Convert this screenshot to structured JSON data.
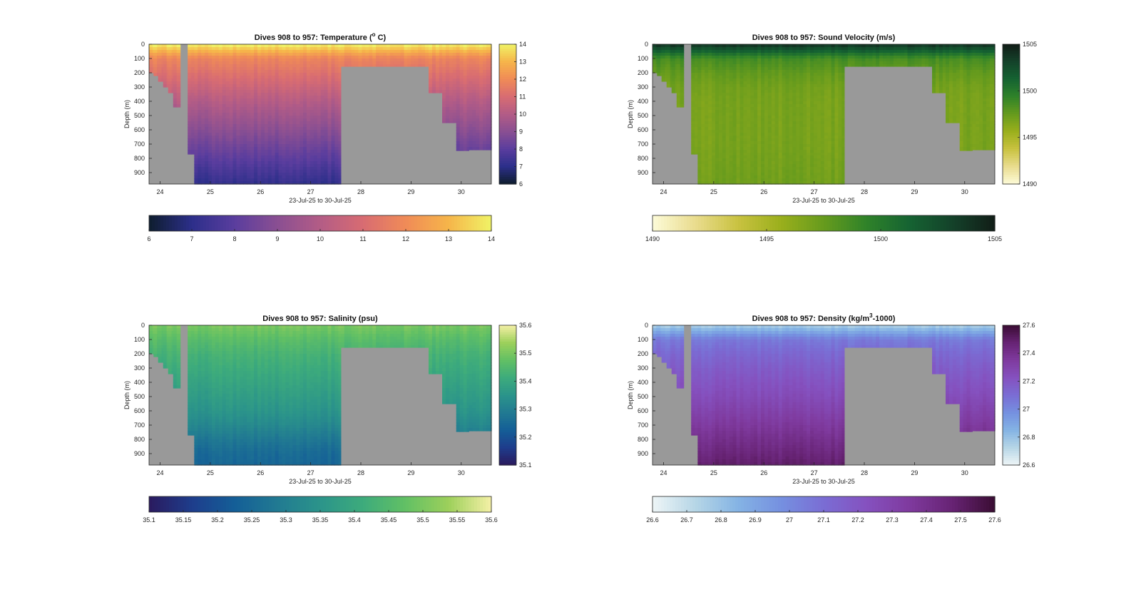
{
  "chart_data": [
    {
      "type": "heatmap",
      "title": "Dives 908 to 957: Temperature (° C)",
      "title_base": "Dives 908 to 957: Temperature (",
      "title_sup": "o",
      "title_end": " C)",
      "xlabel": "23-Jul-25 to 30-Jul-25",
      "ylabel": "Depth (m)",
      "x_ticks": [
        "24",
        "25",
        "26",
        "27",
        "28",
        "29",
        "30"
      ],
      "y_ticks": [
        "0",
        "100",
        "200",
        "300",
        "400",
        "500",
        "600",
        "700",
        "800",
        "900"
      ],
      "xlim": [
        23.78,
        30.6
      ],
      "ylim": [
        0,
        980
      ],
      "colorbar_ticks": [
        "6",
        "7",
        "8",
        "9",
        "10",
        "11",
        "12",
        "13",
        "14"
      ],
      "colorbar_h_ticks": [
        "6",
        "7",
        "8",
        "9",
        "10",
        "11",
        "12",
        "13",
        "14"
      ],
      "clim": [
        6,
        14
      ],
      "colormap": [
        "#0e1d2e",
        "#2c2f8a",
        "#5a3d9e",
        "#8a4f92",
        "#b35c86",
        "#d86c72",
        "#f08b57",
        "#f6b54a",
        "#f0f366"
      ],
      "nodata_color": "#999999",
      "values_by_depth": [
        14,
        11.8,
        11.2,
        10.6,
        10.0,
        9.5,
        9.0,
        8.5,
        8.0,
        7.5,
        7.0
      ]
    },
    {
      "type": "heatmap",
      "title": "Dives 908 to 957: Sound Velocity (m/s)",
      "title_base": "Dives 908 to 957: Sound Velocity (m/s)",
      "title_sup": "",
      "title_end": "",
      "xlabel": "23-Jul-25 to 30-Jul-25",
      "ylabel": "Depth (m)",
      "x_ticks": [
        "24",
        "25",
        "26",
        "27",
        "28",
        "29",
        "30"
      ],
      "y_ticks": [
        "0",
        "100",
        "200",
        "300",
        "400",
        "500",
        "600",
        "700",
        "800",
        "900"
      ],
      "xlim": [
        23.78,
        30.6
      ],
      "ylim": [
        0,
        980
      ],
      "colorbar_ticks": [
        "1490",
        "1495",
        "1500",
        "1505"
      ],
      "colorbar_h_ticks": [
        "1490",
        "1495",
        "1500",
        "1505"
      ],
      "clim": [
        1490,
        1505
      ],
      "colormap": [
        "#fdfbd8",
        "#e9dc8e",
        "#c9c240",
        "#9aaf1c",
        "#669b1d",
        "#2f8229",
        "#156332",
        "#14422a",
        "#111d17"
      ],
      "nodata_color": "#999999",
      "values_by_depth": [
        1504,
        1498.6,
        1497.6,
        1497.0,
        1496.8,
        1496.8,
        1496.8,
        1496.8,
        1496.9,
        1497.0,
        1497.1
      ]
    },
    {
      "type": "heatmap",
      "title": "Dives 908 to 957: Salinity (psu)",
      "title_base": "Dives 908 to 957: Salinity (psu)",
      "title_sup": "",
      "title_end": "",
      "xlabel": "23-Jul-25 to 30-Jul-25",
      "ylabel": "Depth (m)",
      "x_ticks": [
        "24",
        "25",
        "26",
        "27",
        "28",
        "29",
        "30"
      ],
      "y_ticks": [
        "0",
        "100",
        "200",
        "300",
        "400",
        "500",
        "600",
        "700",
        "800",
        "900"
      ],
      "xlim": [
        23.78,
        30.6
      ],
      "ylim": [
        0,
        980
      ],
      "colorbar_ticks": [
        "35.6",
        "35.5",
        "35.4",
        "35.3",
        "35.2",
        "35.1"
      ],
      "colorbar_h_ticks": [
        "35.1",
        "35.15",
        "35.2",
        "35.25",
        "35.3",
        "35.35",
        "35.4",
        "35.45",
        "35.5",
        "35.55",
        "35.6"
      ],
      "clim": [
        35.1,
        35.6
      ],
      "colormap": [
        "#2a1a5e",
        "#1e3d8c",
        "#145e97",
        "#217a92",
        "#2b948a",
        "#3dab7c",
        "#62c064",
        "#9dd05b",
        "#f5f0a6"
      ],
      "nodata_color": "#999999",
      "values_by_depth": [
        35.5,
        35.46,
        35.43,
        35.41,
        35.39,
        35.37,
        35.35,
        35.32,
        35.28,
        35.25,
        35.24
      ]
    },
    {
      "type": "heatmap",
      "title": "Dives 908 to 957: Density (kg/m³-1000)",
      "title_base": "Dives 908 to 957: Density (kg/m",
      "title_sup": "3",
      "title_end": "-1000)",
      "xlabel": "23-Jul-25 to 30-Jul-25",
      "ylabel": "Depth (m)",
      "x_ticks": [
        "24",
        "25",
        "26",
        "27",
        "28",
        "29",
        "30"
      ],
      "y_ticks": [
        "0",
        "100",
        "200",
        "300",
        "400",
        "500",
        "600",
        "700",
        "800",
        "900"
      ],
      "xlim": [
        23.78,
        30.6
      ],
      "ylim": [
        0,
        980
      ],
      "colorbar_ticks": [
        "27.6",
        "27.4",
        "27.2",
        "27",
        "26.8",
        "26.6"
      ],
      "colorbar_h_ticks": [
        "26.6",
        "26.7",
        "26.8",
        "26.9",
        "27",
        "27.1",
        "27.2",
        "27.3",
        "27.4",
        "27.5",
        "27.6"
      ],
      "clim": [
        26.6,
        27.6
      ],
      "colormap": [
        "#eef5f7",
        "#b6d6e6",
        "#84b3e4",
        "#7590e0",
        "#7a6dd4",
        "#8551bf",
        "#7f3a9e",
        "#672374",
        "#3a0d33"
      ],
      "nodata_color": "#999999",
      "values_by_depth": [
        26.75,
        27.05,
        27.12,
        27.17,
        27.21,
        27.25,
        27.3,
        27.35,
        27.4,
        27.45,
        27.5
      ]
    }
  ]
}
